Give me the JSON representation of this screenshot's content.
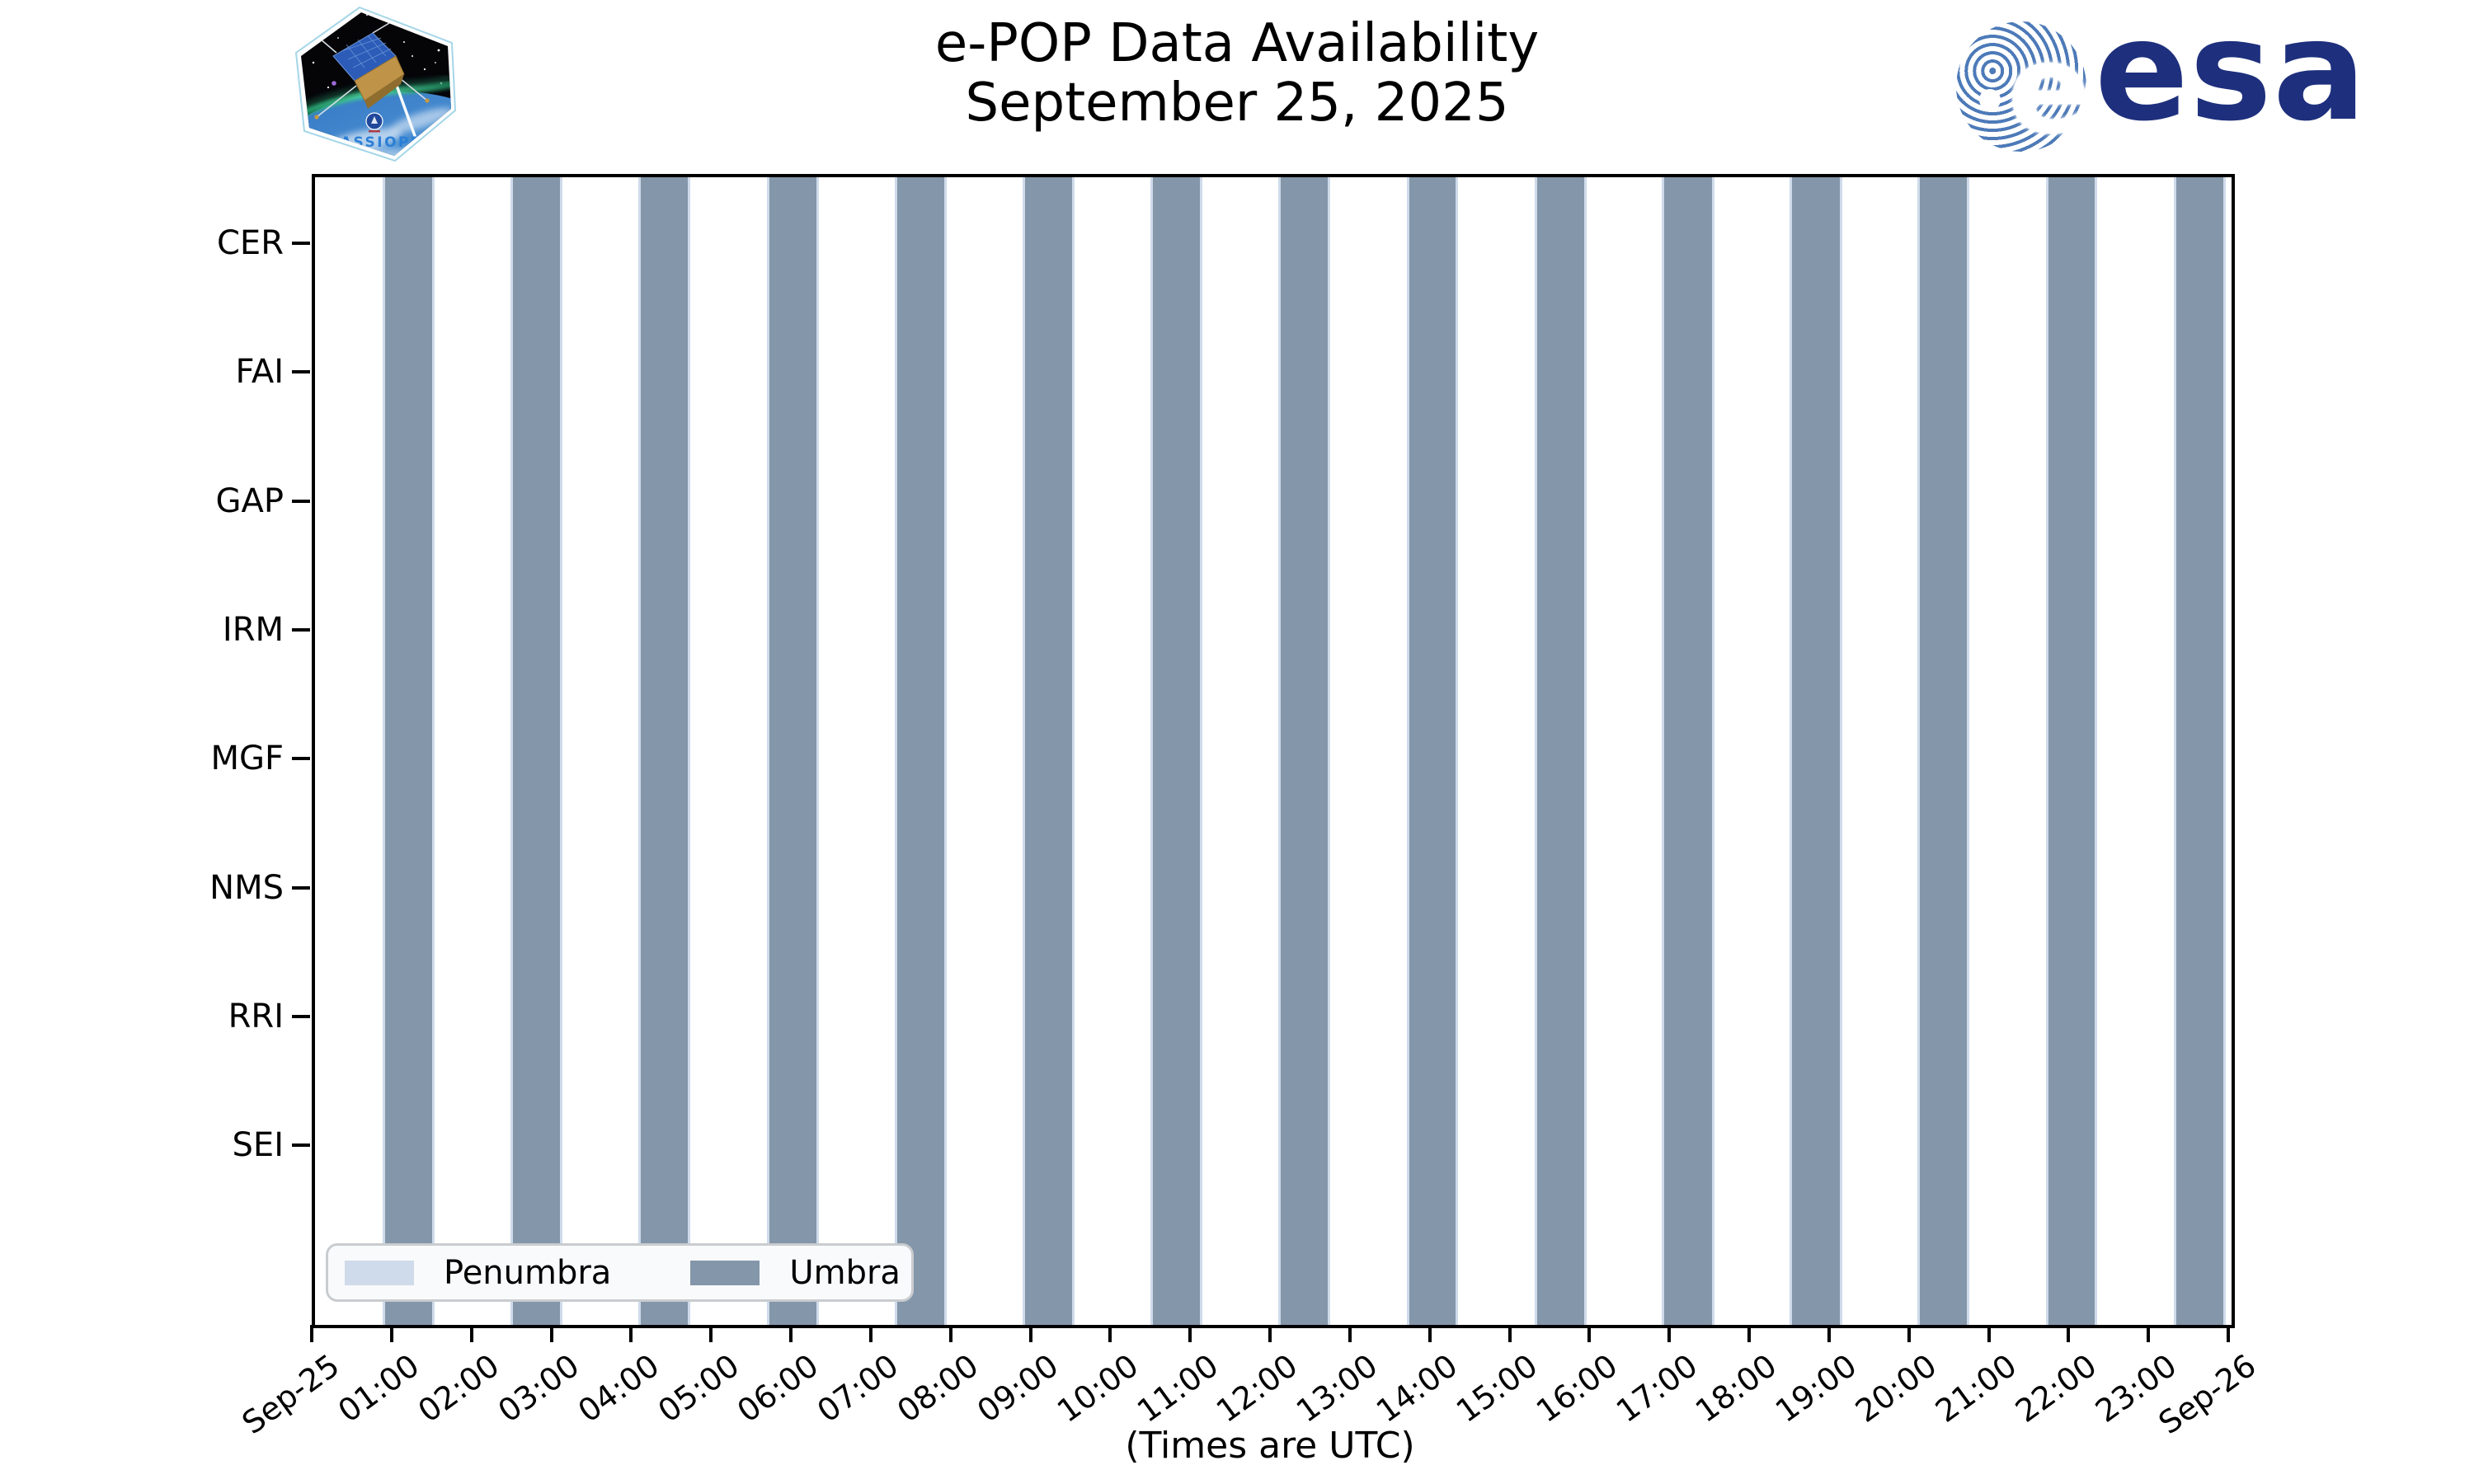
{
  "header": {
    "title_line1": "e-POP Data Availability",
    "title_line2": "September 25, 2025",
    "cassiope_patch_text": "CASSIOPE",
    "esa_logo_text": "esa"
  },
  "chart_data": {
    "type": "bar",
    "subtype": "time-availability-bands",
    "title": "e-POP Data Availability",
    "subtitle": "September 25, 2025",
    "xlabel": "(Times are UTC)",
    "x_axis": {
      "start": "Sep-25 00:00",
      "end": "Sep-26 00:00",
      "tick_labels": [
        "Sep-25",
        "01:00",
        "02:00",
        "03:00",
        "04:00",
        "05:00",
        "06:00",
        "07:00",
        "08:00",
        "09:00",
        "10:00",
        "11:00",
        "12:00",
        "13:00",
        "14:00",
        "15:00",
        "16:00",
        "17:00",
        "18:00",
        "19:00",
        "20:00",
        "21:00",
        "22:00",
        "23:00",
        "Sep-26"
      ],
      "range_hours": [
        0,
        24
      ],
      "grid": false
    },
    "y_categories": [
      "CER",
      "FAI",
      "GAP",
      "IRM",
      "MGF",
      "NMS",
      "RRI",
      "SEI"
    ],
    "instrument_data_bars": [],
    "series": [
      {
        "name": "Umbra",
        "color": "#8496a9",
        "intervals_hours": [
          [
            0.88,
            1.47
          ],
          [
            2.48,
            3.07
          ],
          [
            4.08,
            4.67
          ],
          [
            5.69,
            6.28
          ],
          [
            7.29,
            7.88
          ],
          [
            8.89,
            9.48
          ],
          [
            10.49,
            11.08
          ],
          [
            12.09,
            12.68
          ],
          [
            13.7,
            14.28
          ],
          [
            15.3,
            15.89
          ],
          [
            16.9,
            17.49
          ],
          [
            18.5,
            19.09
          ],
          [
            20.1,
            20.69
          ],
          [
            21.71,
            22.29
          ],
          [
            23.31,
            23.9
          ]
        ],
        "intervals_utc": [
          [
            "00:53",
            "01:28"
          ],
          [
            "02:29",
            "03:04"
          ],
          [
            "04:05",
            "04:40"
          ],
          [
            "05:41",
            "06:17"
          ],
          [
            "07:17",
            "07:53"
          ],
          [
            "08:53",
            "09:29"
          ],
          [
            "10:29",
            "11:05"
          ],
          [
            "12:05",
            "12:41"
          ],
          [
            "13:42",
            "14:17"
          ],
          [
            "15:18",
            "15:53"
          ],
          [
            "16:54",
            "17:29"
          ],
          [
            "18:30",
            "19:05"
          ],
          [
            "20:06",
            "20:41"
          ],
          [
            "21:43",
            "22:17"
          ],
          [
            "23:18",
            "23:54"
          ]
        ]
      },
      {
        "name": "Penumbra",
        "color": "#cfdbea",
        "note": "thin bands flanking each umbra interval",
        "edge_width_hours": 0.03
      }
    ],
    "legend": {
      "position": "lower left",
      "entries": [
        "Penumbra",
        "Umbra"
      ]
    }
  },
  "colors": {
    "umbra": "#8496a9",
    "penumbra": "#cfdbea",
    "spine": "#000000",
    "legend_bg": "#f9fafc",
    "legend_border": "#c9cccf",
    "esa_navy": "#1e2f7d",
    "esa_globe_blue": "#4d7ab8",
    "cassiope_text_blue": "#2b7fd6"
  }
}
